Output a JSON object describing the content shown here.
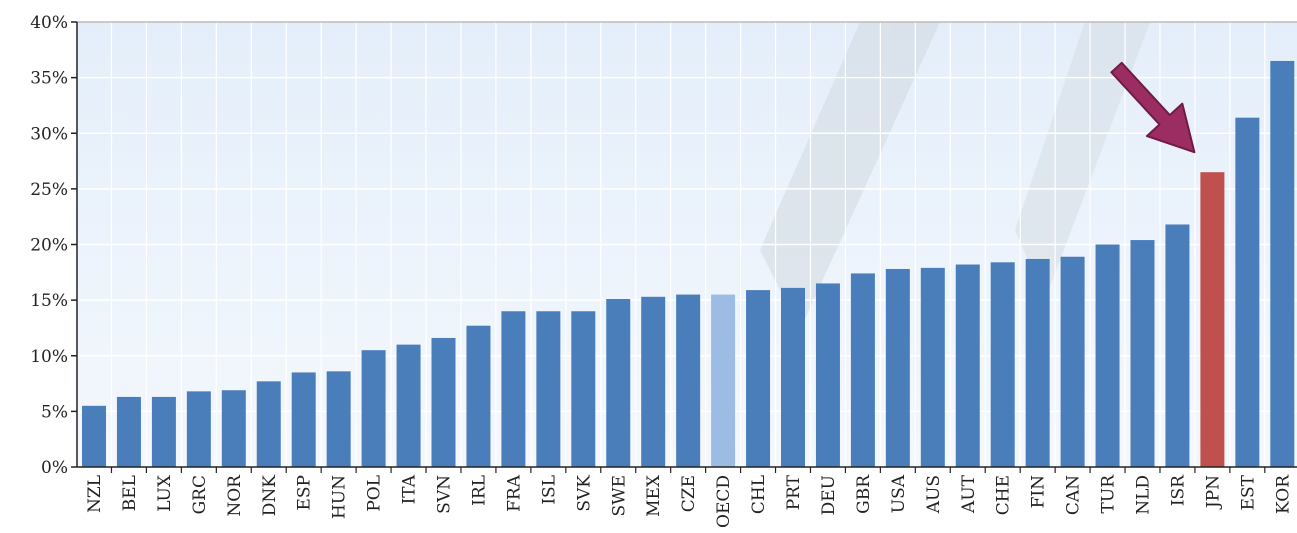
{
  "chart_data": {
    "type": "bar",
    "categories": [
      "NZL",
      "BEL",
      "LUX",
      "GRC",
      "NOR",
      "DNK",
      "ESP",
      "HUN",
      "POL",
      "ITA",
      "SVN",
      "IRL",
      "FRA",
      "ISL",
      "SVK",
      "SWE",
      "MEX",
      "CZE",
      "OECD",
      "CHL",
      "PRT",
      "DEU",
      "GBR",
      "USA",
      "AUS",
      "AUT",
      "CHE",
      "FIN",
      "CAN",
      "TUR",
      "NLD",
      "ISR",
      "JPN",
      "EST",
      "KOR"
    ],
    "values": [
      5.5,
      6.3,
      6.3,
      6.8,
      6.9,
      7.7,
      8.5,
      8.6,
      10.5,
      11.0,
      11.6,
      12.7,
      14.0,
      14.0,
      14.0,
      15.1,
      15.3,
      15.5,
      15.5,
      15.9,
      16.1,
      16.5,
      17.4,
      17.8,
      17.9,
      18.2,
      18.4,
      18.7,
      18.9,
      20.0,
      20.4,
      21.8,
      26.5,
      31.4,
      36.5
    ],
    "title": "",
    "xlabel": "",
    "ylabel": "",
    "ylim": [
      0,
      40
    ],
    "yticks": [
      "0%",
      "5%",
      "10%",
      "15%",
      "20%",
      "25%",
      "30%",
      "35%",
      "40%"
    ],
    "grid": true,
    "colors": {
      "default": "#4a7ebb",
      "average": "#9dbce4",
      "highlight": "#c0504d",
      "arrow": "#9b2d62",
      "plot_background": "#eef4fc",
      "grid": "#ffffff"
    },
    "average_category": "OECD",
    "highlight_category": "JPN",
    "annotation": {
      "type": "arrow",
      "target": "JPN"
    }
  }
}
